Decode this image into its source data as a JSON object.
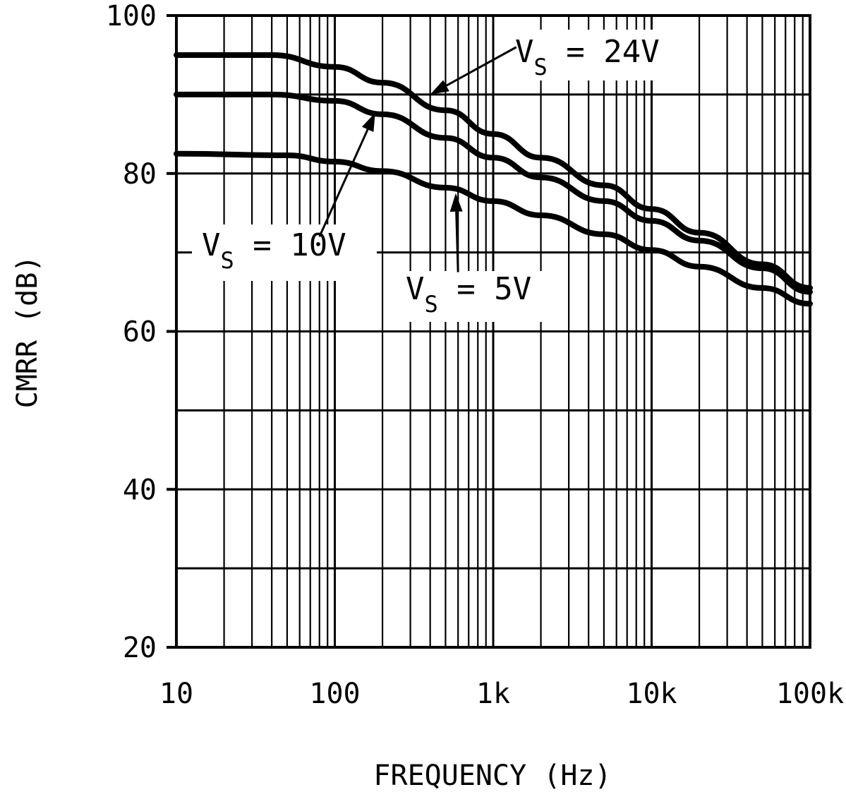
{
  "chart_data": {
    "type": "line",
    "title": "",
    "xlabel": "FREQUENCY (Hz)",
    "ylabel": "CMRR (dB)",
    "xscale": "log",
    "xlim": [
      10,
      100000
    ],
    "ylim": [
      20,
      100
    ],
    "x_ticks": [
      {
        "value": 10,
        "label": "10"
      },
      {
        "value": 100,
        "label": "100"
      },
      {
        "value": 1000,
        "label": "1k"
      },
      {
        "value": 10000,
        "label": "10k"
      },
      {
        "value": 100000,
        "label": "100k"
      }
    ],
    "y_ticks": [
      {
        "value": 20,
        "label": "20"
      },
      {
        "value": 40,
        "label": "40"
      },
      {
        "value": 60,
        "label": "60"
      },
      {
        "value": 80,
        "label": "80"
      },
      {
        "value": 100,
        "label": "100"
      }
    ],
    "y_gridlines": [
      20,
      30,
      40,
      50,
      60,
      70,
      80,
      90,
      100
    ],
    "grid": true,
    "series": [
      {
        "name": "VS = 24V",
        "label_main": "V",
        "label_sub": "S",
        "label_rest": " = 24V",
        "points": [
          {
            "x": 10,
            "y": 95
          },
          {
            "x": 40,
            "y": 95
          },
          {
            "x": 100,
            "y": 93.5
          },
          {
            "x": 200,
            "y": 91.5
          },
          {
            "x": 500,
            "y": 88
          },
          {
            "x": 1000,
            "y": 85
          },
          {
            "x": 2000,
            "y": 82
          },
          {
            "x": 5000,
            "y": 78.5
          },
          {
            "x": 10000,
            "y": 75.5
          },
          {
            "x": 20000,
            "y": 72.5
          },
          {
            "x": 50000,
            "y": 68.5
          },
          {
            "x": 100000,
            "y": 65.5
          }
        ]
      },
      {
        "name": "VS = 10V",
        "label_main": "V",
        "label_sub": "S",
        "label_rest": " = 10V",
        "points": [
          {
            "x": 10,
            "y": 90
          },
          {
            "x": 40,
            "y": 90
          },
          {
            "x": 100,
            "y": 89.2
          },
          {
            "x": 200,
            "y": 87.5
          },
          {
            "x": 500,
            "y": 84.5
          },
          {
            "x": 1000,
            "y": 82
          },
          {
            "x": 2000,
            "y": 79.5
          },
          {
            "x": 5000,
            "y": 76.5
          },
          {
            "x": 10000,
            "y": 74
          },
          {
            "x": 20000,
            "y": 71.5
          },
          {
            "x": 50000,
            "y": 68
          },
          {
            "x": 100000,
            "y": 65
          }
        ]
      },
      {
        "name": "VS = 5V",
        "label_main": "V",
        "label_sub": "S",
        "label_rest": " = 5V",
        "points": [
          {
            "x": 10,
            "y": 82.5
          },
          {
            "x": 50,
            "y": 82.3
          },
          {
            "x": 100,
            "y": 81.5
          },
          {
            "x": 200,
            "y": 80.3
          },
          {
            "x": 500,
            "y": 78.2
          },
          {
            "x": 1000,
            "y": 76.5
          },
          {
            "x": 2000,
            "y": 74.7
          },
          {
            "x": 5000,
            "y": 72.3
          },
          {
            "x": 10000,
            "y": 70.3
          },
          {
            "x": 20000,
            "y": 68.2
          },
          {
            "x": 50000,
            "y": 65.5
          },
          {
            "x": 100000,
            "y": 63.5
          }
        ]
      }
    ],
    "annotations": [
      {
        "series": "VS = 24V",
        "text": "VS = 24V",
        "arrow_from": {
          "x": 1400,
          "y": 96
        },
        "arrow_to": {
          "x": 400,
          "y": 90
        }
      },
      {
        "series": "VS = 10V",
        "text": "VS = 10V",
        "arrow_from": {
          "x": 80,
          "y": 72
        },
        "arrow_to": {
          "x": 180,
          "y": 87.7
        }
      },
      {
        "series": "VS = 5V",
        "text": "VS = 5V",
        "arrow_from": {
          "x": 600,
          "y": 67.5
        },
        "arrow_to": {
          "x": 580,
          "y": 77.5
        }
      }
    ]
  }
}
